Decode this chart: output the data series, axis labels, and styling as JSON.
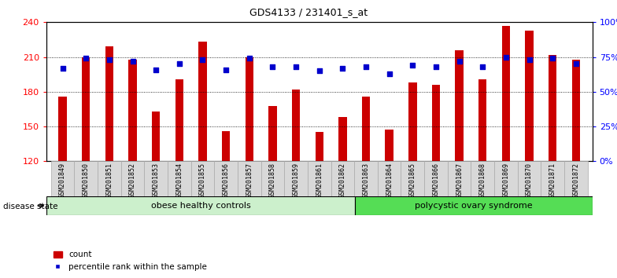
{
  "title": "GDS4133 / 231401_s_at",
  "samples": [
    "GSM201849",
    "GSM201850",
    "GSM201851",
    "GSM201852",
    "GSM201853",
    "GSM201854",
    "GSM201855",
    "GSM201856",
    "GSM201857",
    "GSM201858",
    "GSM201859",
    "GSM201861",
    "GSM201862",
    "GSM201863",
    "GSM201864",
    "GSM201865",
    "GSM201866",
    "GSM201867",
    "GSM201868",
    "GSM201869",
    "GSM201870",
    "GSM201871",
    "GSM201872"
  ],
  "count_values": [
    176,
    210,
    219,
    208,
    163,
    191,
    223,
    146,
    210,
    168,
    182,
    145,
    158,
    176,
    147,
    188,
    186,
    216,
    191,
    237,
    233,
    212,
    208
  ],
  "percentile_values": [
    67,
    74,
    73,
    72,
    66,
    70,
    73,
    66,
    74,
    68,
    68,
    65,
    67,
    68,
    63,
    69,
    68,
    72,
    68,
    75,
    73,
    74,
    70
  ],
  "group1_label": "obese healthy controls",
  "group1_count": 13,
  "group2_label": "polycystic ovary syndrome",
  "group2_count": 10,
  "disease_state_label": "disease state",
  "ylim_left": [
    120,
    240
  ],
  "ylim_right": [
    0,
    100
  ],
  "yticks_left": [
    120,
    150,
    180,
    210,
    240
  ],
  "yticks_right": [
    0,
    25,
    50,
    75,
    100
  ],
  "bar_color": "#cc0000",
  "dot_color": "#0000cc",
  "bar_width": 0.35,
  "background_color": "#ffffff",
  "plot_bg_color": "#ffffff",
  "group1_bg": "#ccf0cc",
  "group2_bg": "#55dd55",
  "legend_count_label": "count",
  "legend_pct_label": "percentile rank within the sample"
}
